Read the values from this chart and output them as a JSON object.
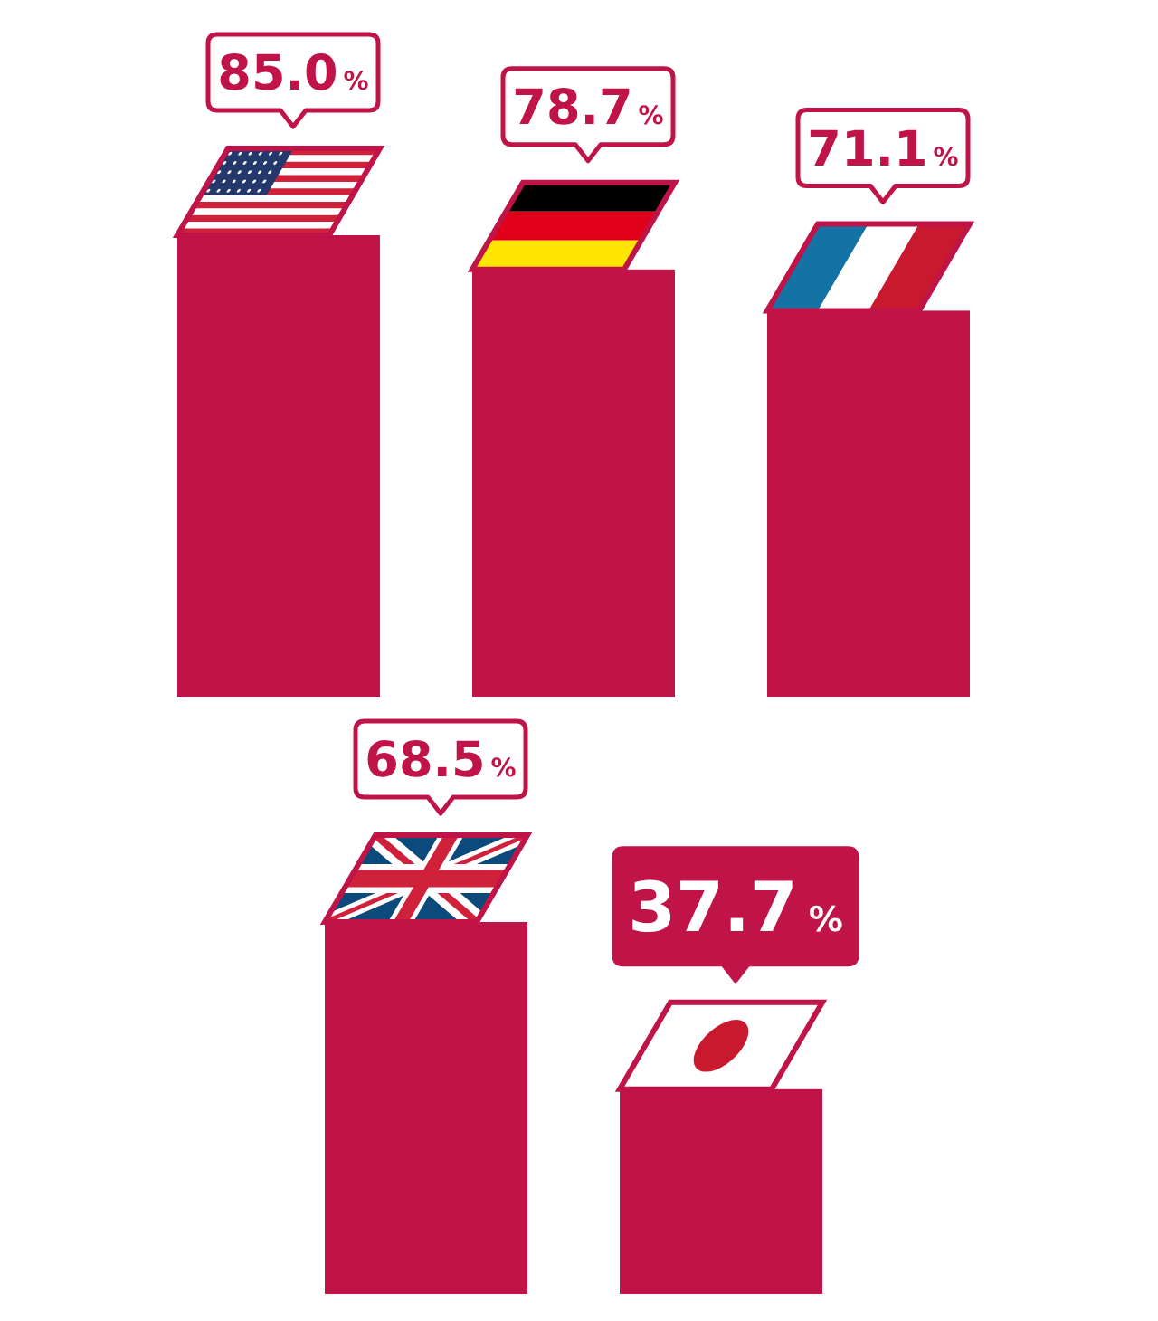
{
  "chart_data": [
    {
      "type": "bar",
      "categories": [
        null,
        null,
        null
      ],
      "values": [
        85.0,
        78.7,
        71.1
      ],
      "color": "#c01448",
      "value_labels": [
        "85.0%",
        "78.7%",
        "71.1%"
      ]
    },
    {
      "type": "bar",
      "categories": [
        null,
        null
      ],
      "values": [
        68.5,
        37.7
      ],
      "color": "#c01448",
      "value_labels": [
        "68.5%",
        "37.7%"
      ]
    }
  ]
}
